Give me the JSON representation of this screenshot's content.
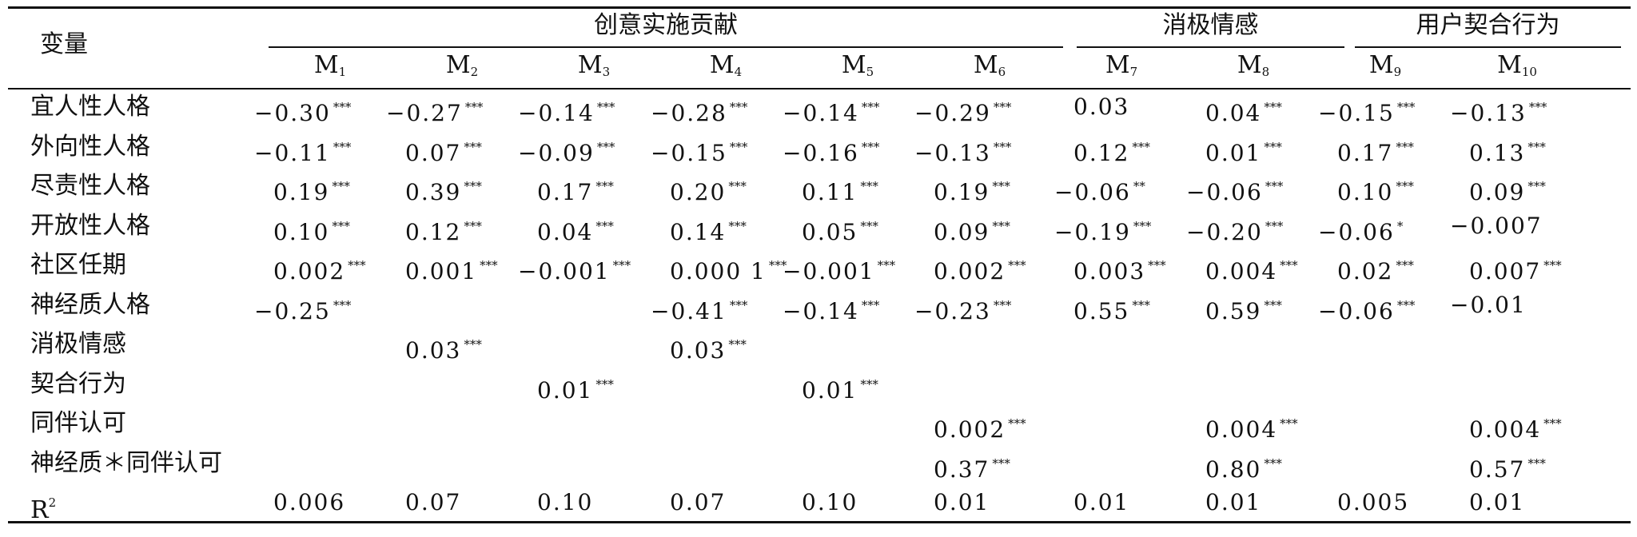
{
  "header": {
    "variable_label": "变量",
    "groups": [
      {
        "label": "创意实施贡献",
        "models": [
          {
            "base": "M",
            "sub": "1"
          },
          {
            "base": "M",
            "sub": "2"
          },
          {
            "base": "M",
            "sub": "3"
          },
          {
            "base": "M",
            "sub": "4"
          },
          {
            "base": "M",
            "sub": "5"
          },
          {
            "base": "M",
            "sub": "6"
          }
        ]
      },
      {
        "label": "消极情感",
        "models": [
          {
            "base": "M",
            "sub": "7"
          },
          {
            "base": "M",
            "sub": "8"
          }
        ]
      },
      {
        "label": "用户契合行为",
        "models": [
          {
            "base": "M",
            "sub": "9"
          },
          {
            "base": "M",
            "sub": "10"
          }
        ]
      }
    ]
  },
  "rows": [
    {
      "label": "宜人性人格",
      "cells": [
        {
          "v": "−0.30",
          "s": "***"
        },
        {
          "v": "−0.27",
          "s": "***"
        },
        {
          "v": "−0.14",
          "s": "***"
        },
        {
          "v": "−0.28",
          "s": "***"
        },
        {
          "v": "−0.14",
          "s": "***"
        },
        {
          "v": "−0.29",
          "s": "***"
        },
        {
          "v": "0.03",
          "s": ""
        },
        {
          "v": "0.04",
          "s": "***"
        },
        {
          "v": "−0.15",
          "s": "***"
        },
        {
          "v": "−0.13",
          "s": "***"
        }
      ]
    },
    {
      "label": "外向性人格",
      "cells": [
        {
          "v": "−0.11",
          "s": "***"
        },
        {
          "v": "0.07",
          "s": "***"
        },
        {
          "v": "−0.09",
          "s": "***"
        },
        {
          "v": "−0.15",
          "s": "***"
        },
        {
          "v": "−0.16",
          "s": "***"
        },
        {
          "v": "−0.13",
          "s": "***"
        },
        {
          "v": "0.12",
          "s": "***"
        },
        {
          "v": "0.01",
          "s": "***"
        },
        {
          "v": "0.17",
          "s": "***"
        },
        {
          "v": "0.13",
          "s": "***"
        }
      ]
    },
    {
      "label": "尽责性人格",
      "cells": [
        {
          "v": "0.19",
          "s": "***"
        },
        {
          "v": "0.39",
          "s": "***"
        },
        {
          "v": "0.17",
          "s": "***"
        },
        {
          "v": "0.20",
          "s": "***"
        },
        {
          "v": "0.11",
          "s": "***"
        },
        {
          "v": "0.19",
          "s": "***"
        },
        {
          "v": "−0.06",
          "s": "**"
        },
        {
          "v": "−0.06",
          "s": "***"
        },
        {
          "v": "0.10",
          "s": "***"
        },
        {
          "v": "0.09",
          "s": "***"
        }
      ]
    },
    {
      "label": "开放性人格",
      "cells": [
        {
          "v": "0.10",
          "s": "***"
        },
        {
          "v": "0.12",
          "s": "***"
        },
        {
          "v": "0.04",
          "s": "***"
        },
        {
          "v": "0.14",
          "s": "***"
        },
        {
          "v": "0.05",
          "s": "***"
        },
        {
          "v": "0.09",
          "s": "***"
        },
        {
          "v": "−0.19",
          "s": "***"
        },
        {
          "v": "−0.20",
          "s": "***"
        },
        {
          "v": "−0.06",
          "s": "*"
        },
        {
          "v": "−0.007",
          "s": ""
        }
      ]
    },
    {
      "label": "社区任期",
      "cells": [
        {
          "v": "0.002",
          "s": "***"
        },
        {
          "v": "0.001",
          "s": "***"
        },
        {
          "v": "−0.001",
          "s": "***"
        },
        {
          "v": "0.000 1",
          "s": "***"
        },
        {
          "v": "−0.001",
          "s": "***"
        },
        {
          "v": "0.002",
          "s": "***"
        },
        {
          "v": "0.003",
          "s": "***"
        },
        {
          "v": "0.004",
          "s": "***"
        },
        {
          "v": "0.02",
          "s": "***"
        },
        {
          "v": "0.007",
          "s": "***"
        }
      ]
    },
    {
      "label": "神经质人格",
      "cells": [
        {
          "v": "−0.25",
          "s": "***"
        },
        {
          "v": "",
          "s": ""
        },
        {
          "v": "",
          "s": ""
        },
        {
          "v": "−0.41",
          "s": "***"
        },
        {
          "v": "−0.14",
          "s": "***"
        },
        {
          "v": "−0.23",
          "s": "***"
        },
        {
          "v": "0.55",
          "s": "***"
        },
        {
          "v": "0.59",
          "s": "***"
        },
        {
          "v": "−0.06",
          "s": "***"
        },
        {
          "v": "−0.01",
          "s": ""
        }
      ]
    },
    {
      "label": "消极情感",
      "cells": [
        {
          "v": "",
          "s": ""
        },
        {
          "v": "0.03",
          "s": "***"
        },
        {
          "v": "",
          "s": ""
        },
        {
          "v": "0.03",
          "s": "***"
        },
        {
          "v": "",
          "s": ""
        },
        {
          "v": "",
          "s": ""
        },
        {
          "v": "",
          "s": ""
        },
        {
          "v": "",
          "s": ""
        },
        {
          "v": "",
          "s": ""
        },
        {
          "v": "",
          "s": ""
        }
      ]
    },
    {
      "label": "契合行为",
      "cells": [
        {
          "v": "",
          "s": ""
        },
        {
          "v": "",
          "s": ""
        },
        {
          "v": "0.01",
          "s": "***"
        },
        {
          "v": "",
          "s": ""
        },
        {
          "v": "0.01",
          "s": "***"
        },
        {
          "v": "",
          "s": ""
        },
        {
          "v": "",
          "s": ""
        },
        {
          "v": "",
          "s": ""
        },
        {
          "v": "",
          "s": ""
        },
        {
          "v": "",
          "s": ""
        }
      ]
    },
    {
      "label": "同伴认可",
      "cells": [
        {
          "v": "",
          "s": ""
        },
        {
          "v": "",
          "s": ""
        },
        {
          "v": "",
          "s": ""
        },
        {
          "v": "",
          "s": ""
        },
        {
          "v": "",
          "s": ""
        },
        {
          "v": "0.002",
          "s": "***"
        },
        {
          "v": "",
          "s": ""
        },
        {
          "v": "0.004",
          "s": "***"
        },
        {
          "v": "",
          "s": ""
        },
        {
          "v": "0.004",
          "s": "***"
        }
      ]
    },
    {
      "label": "神经质＊同伴认可",
      "cells": [
        {
          "v": "",
          "s": ""
        },
        {
          "v": "",
          "s": ""
        },
        {
          "v": "",
          "s": ""
        },
        {
          "v": "",
          "s": ""
        },
        {
          "v": "",
          "s": ""
        },
        {
          "v": "0.37",
          "s": "***"
        },
        {
          "v": "",
          "s": ""
        },
        {
          "v": "0.80",
          "s": "***"
        },
        {
          "v": "",
          "s": ""
        },
        {
          "v": "0.57",
          "s": "***"
        }
      ]
    },
    {
      "label": "R",
      "label_sup": "2",
      "cells": [
        {
          "v": "0.006",
          "s": ""
        },
        {
          "v": "0.07",
          "s": ""
        },
        {
          "v": "0.10",
          "s": ""
        },
        {
          "v": "0.07",
          "s": ""
        },
        {
          "v": "0.10",
          "s": ""
        },
        {
          "v": "0.01",
          "s": ""
        },
        {
          "v": "0.01",
          "s": ""
        },
        {
          "v": "0.01",
          "s": ""
        },
        {
          "v": "0.005",
          "s": ""
        },
        {
          "v": "0.01",
          "s": ""
        }
      ]
    }
  ]
}
